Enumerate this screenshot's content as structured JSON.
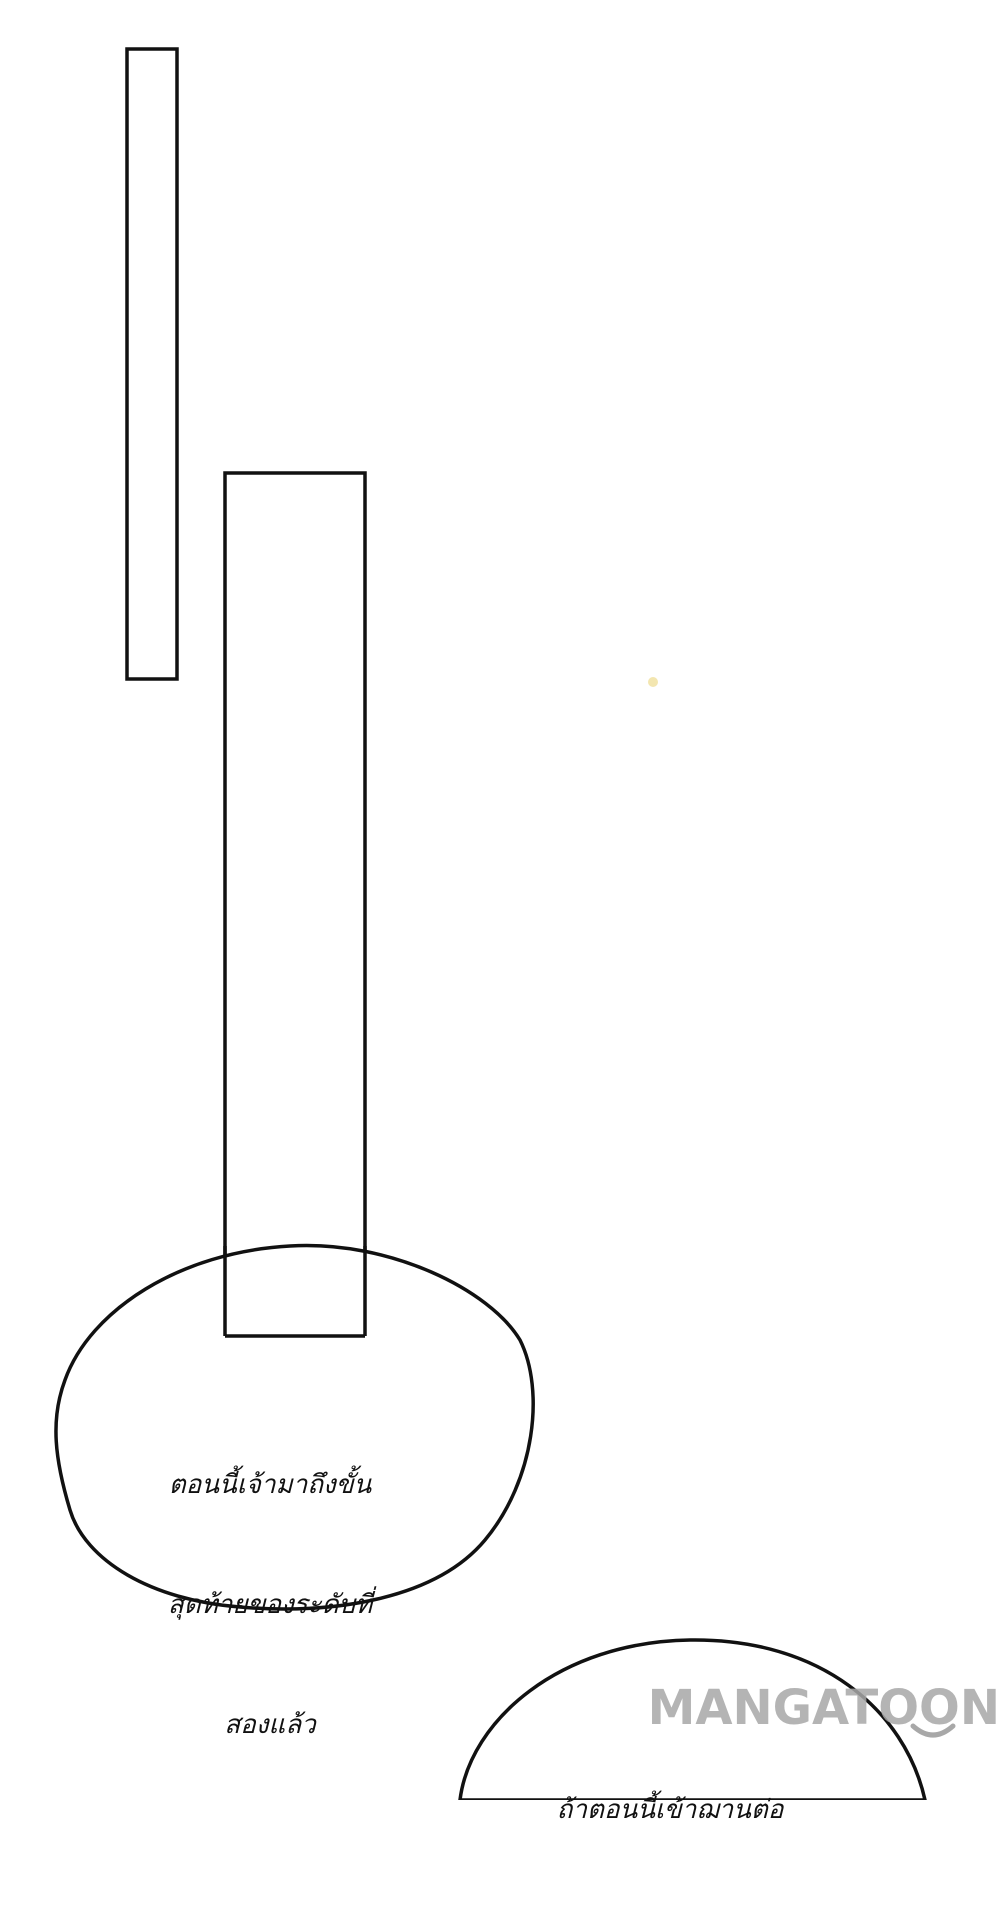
{
  "panels": [
    {
      "name": "frame-left-narrow"
    },
    {
      "name": "frame-middle-tall"
    }
  ],
  "bubbles": [
    {
      "lines": [
        "ตอนนี้เจ้ามาถึงขั้น",
        "สุดท้ายของระดับที่",
        "สองแล้ว"
      ]
    },
    {
      "lines": [
        "ถ้าตอนนี้เข้าฌานต่อ"
      ]
    }
  ],
  "watermark": {
    "text": "MANGATOON",
    "color": "#a8a8a8"
  },
  "colors": {
    "ink": "#111111",
    "paper": "#ffffff",
    "dot": "#f3e6b0"
  }
}
